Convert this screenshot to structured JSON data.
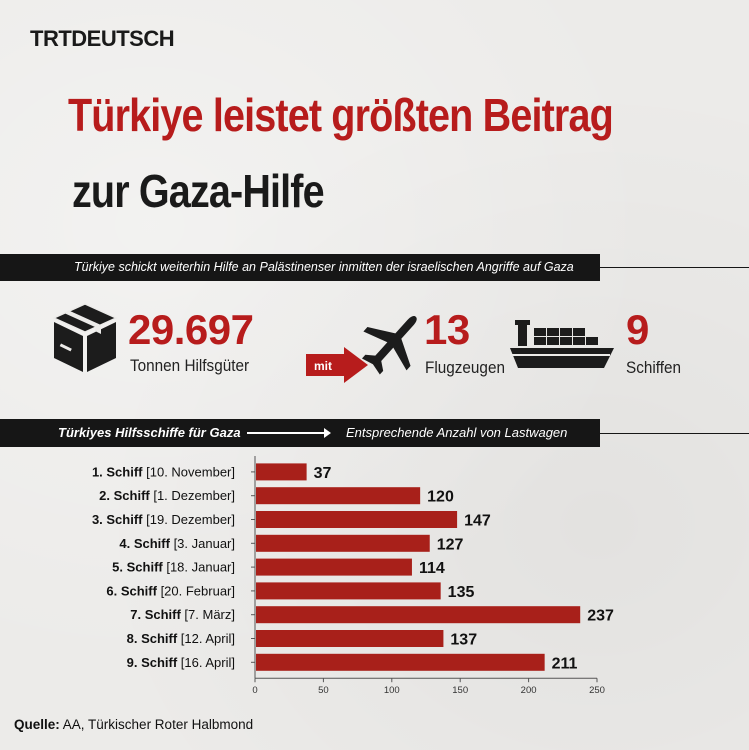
{
  "brand": "TRTDEUTSCH",
  "title_line1": "Türkiye leistet größten Beitrag",
  "title_line2": "zur Gaza-Hilfe",
  "subtitle": "Türkiye schickt weiterhin Hilfe an Palästinenser inmitten der israelischen Angriffe auf Gaza",
  "stats": {
    "tonnes": {
      "value": "29.697",
      "label": "Tonnen Hilfsgüter",
      "icon": "box-icon"
    },
    "connector": "mit",
    "planes": {
      "value": "13",
      "label": "Flugzeugen",
      "icon": "airplane-icon"
    },
    "ships": {
      "value": "9",
      "label": "Schiffen",
      "icon": "cargo-ship-icon"
    }
  },
  "section": {
    "left": "Türkiyes Hilfsschiffe für Gaza",
    "right": "Entsprechende Anzahl von Lastwagen"
  },
  "chart_data": {
    "type": "bar",
    "orientation": "horizontal",
    "categories": [
      {
        "name": "1. Schiff",
        "date": "[10. November]"
      },
      {
        "name": "2. Schiff",
        "date": "[1. Dezember]"
      },
      {
        "name": "3. Schiff",
        "date": "[19. Dezember]"
      },
      {
        "name": "4. Schiff",
        "date": "[3. Januar]"
      },
      {
        "name": "5. Schiff",
        "date": "[18. Januar]"
      },
      {
        "name": "6. Schiff",
        "date": "[20. Februar]"
      },
      {
        "name": "7. Schiff",
        "date": "[7. März]"
      },
      {
        "name": "8. Schiff",
        "date": "[12. April]"
      },
      {
        "name": "9. Schiff",
        "date": "[16. April]"
      }
    ],
    "values": [
      37,
      120,
      147,
      127,
      114,
      135,
      237,
      137,
      211
    ],
    "xlim": [
      0,
      250
    ],
    "xticks": [
      0,
      50,
      100,
      150,
      200,
      250
    ],
    "bar_color": "#a8201a",
    "grid": false
  },
  "source": {
    "label": "Quelle:",
    "text": "AA, Türkischer Roter Halbmond"
  },
  "colors": {
    "accent": "#b71c1c",
    "dark": "#161616",
    "background": "#ecebe9"
  }
}
